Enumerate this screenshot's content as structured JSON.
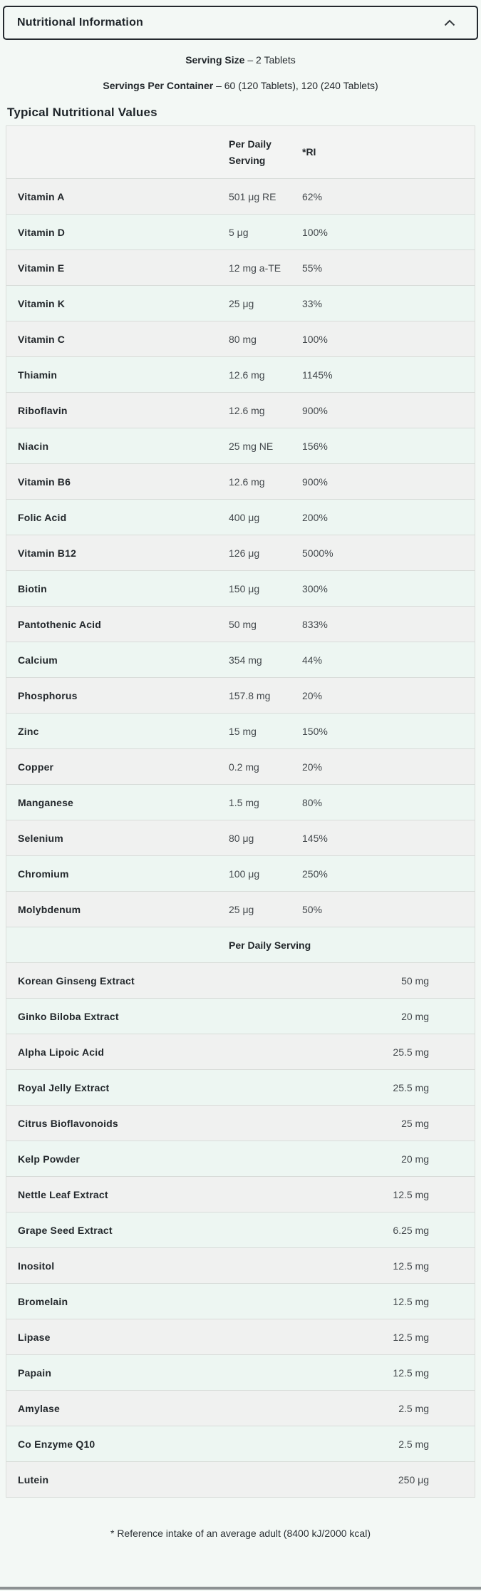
{
  "accordion": {
    "title": "Nutritional Information",
    "chevron_icon": "chevron-up",
    "expanded": true
  },
  "serving": {
    "size_label": "Serving Size",
    "size_value": "– 2 Tablets",
    "container_label": "Servings Per Container",
    "container_value": "– 60 (120 Tablets), 120 (240 Tablets)"
  },
  "table": {
    "section_title": "Typical Nutritional Values",
    "header": {
      "col2": "Per Daily Serving",
      "col3": "*RI"
    },
    "rows": [
      {
        "name": "Vitamin A",
        "amount": "501 μg RE",
        "ri": "62%"
      },
      {
        "name": "Vitamin D",
        "amount": "5 μg",
        "ri": "100%"
      },
      {
        "name": "Vitamin E",
        "amount": "12 mg a-TE",
        "ri": "55%"
      },
      {
        "name": "Vitamin K",
        "amount": "25 μg",
        "ri": "33%"
      },
      {
        "name": "Vitamin C",
        "amount": "80 mg",
        "ri": "100%"
      },
      {
        "name": "Thiamin",
        "amount": "12.6 mg",
        "ri": "1145%"
      },
      {
        "name": "Riboflavin",
        "amount": "12.6 mg",
        "ri": "900%"
      },
      {
        "name": "Niacin",
        "amount": "25 mg NE",
        "ri": "156%"
      },
      {
        "name": "Vitamin B6",
        "amount": "12.6 mg",
        "ri": "900%"
      },
      {
        "name": "Folic Acid",
        "amount": "400 μg",
        "ri": "200%"
      },
      {
        "name": "Vitamin B12",
        "amount": "126 μg",
        "ri": "5000%"
      },
      {
        "name": "Biotin",
        "amount": "150 μg",
        "ri": "300%"
      },
      {
        "name": "Pantothenic Acid",
        "amount": "50 mg",
        "ri": "833%"
      },
      {
        "name": "Calcium",
        "amount": "354 mg",
        "ri": "44%"
      },
      {
        "name": "Phosphorus",
        "amount": "157.8 mg",
        "ri": "20%"
      },
      {
        "name": "Zinc",
        "amount": "15 mg",
        "ri": "150%"
      },
      {
        "name": "Copper",
        "amount": "0.2 mg",
        "ri": "20%"
      },
      {
        "name": "Manganese",
        "amount": "1.5 mg",
        "ri": "80%"
      },
      {
        "name": "Selenium",
        "amount": "80 μg",
        "ri": "145%"
      },
      {
        "name": "Chromium",
        "amount": "100 μg",
        "ri": "250%"
      },
      {
        "name": "Molybdenum",
        "amount": "25 μg",
        "ri": "50%"
      }
    ],
    "subheader": "Per Daily Serving",
    "rows2": [
      {
        "name": "Korean Ginseng Extract",
        "amount": "50 mg"
      },
      {
        "name": "Ginko Biloba Extract",
        "amount": "20 mg"
      },
      {
        "name": "Alpha Lipoic Acid",
        "amount": "25.5 mg"
      },
      {
        "name": "Royal Jelly Extract",
        "amount": "25.5 mg"
      },
      {
        "name": "Citrus Bioflavonoids",
        "amount": "25 mg"
      },
      {
        "name": "Kelp Powder",
        "amount": "20 mg"
      },
      {
        "name": "Nettle Leaf Extract",
        "amount": "12.5 mg"
      },
      {
        "name": "Grape Seed Extract",
        "amount": "6.25 mg"
      },
      {
        "name": "Inositol",
        "amount": "12.5 mg"
      },
      {
        "name": "Bromelain",
        "amount": "12.5 mg"
      },
      {
        "name": "Lipase",
        "amount": "12.5 mg"
      },
      {
        "name": "Papain",
        "amount": "12.5 mg"
      },
      {
        "name": "Amylase",
        "amount": "2.5 mg"
      },
      {
        "name": "Co Enzyme Q10",
        "amount": "2.5 mg"
      },
      {
        "name": "Lutein",
        "amount": "250 μg"
      }
    ]
  },
  "footnote": "* Reference intake of an average adult (8400 kJ/2000 kcal)",
  "colors": {
    "page_bg": "#f3f8f5",
    "row_gray": "#f0f1f0",
    "row_mint": "#edf6f2",
    "header_bg": "#f3f4f3",
    "divider": "#d8dcd9",
    "accordion_border": "#24292e",
    "text_dark": "#23282c",
    "text_value": "#44494d",
    "bottom_bar": "#8c9192"
  }
}
